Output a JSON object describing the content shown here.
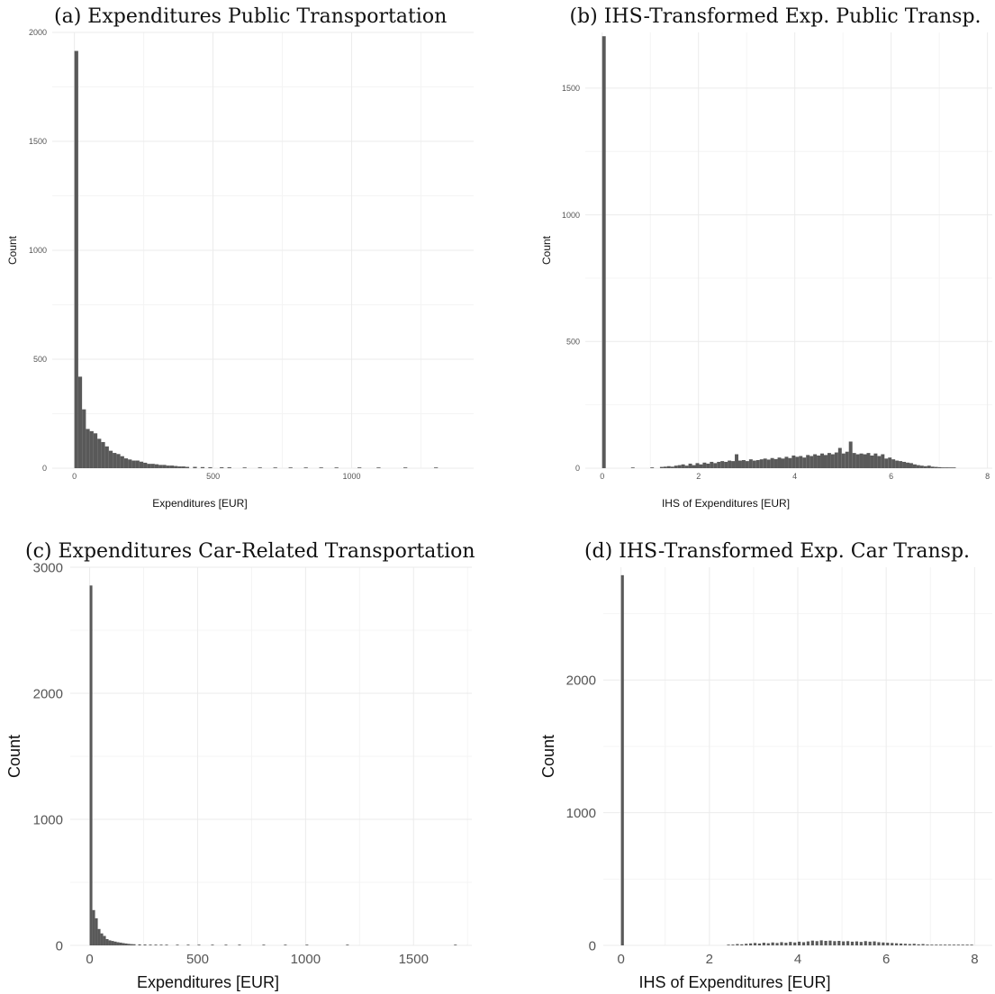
{
  "chart_data": [
    {
      "type": "bar",
      "title": "(a) Expenditures Public Transportation",
      "xlabel": "Expenditures [EUR]",
      "ylabel": "Count",
      "xlim": [
        -80,
        1440
      ],
      "ylim": [
        0,
        2000
      ],
      "xticks": [
        0,
        500,
        1000
      ],
      "yticks": [
        0,
        500,
        1000,
        1500,
        2000
      ],
      "grid": true,
      "binwidth": 13.8,
      "bins_start": [
        0,
        13.8,
        27.6,
        41.4,
        55.2,
        69,
        82.8,
        96.6,
        110.4,
        124.2,
        138,
        151.8,
        165.6,
        179.4,
        193.2,
        207,
        220.8,
        234.6,
        248.4,
        262.2,
        276,
        289.8,
        303.6,
        317.4,
        331.2,
        345,
        358.8,
        372.6,
        386.4,
        400.2,
        427.8,
        455.4,
        483,
        524.4,
        552,
        607.2,
        662.4,
        717.6,
        772.8,
        828,
        883.2,
        938.4,
        1021.2,
        1090.2,
        1186.8,
        1297.2
      ],
      "values": [
        1915,
        420,
        270,
        180,
        170,
        160,
        135,
        120,
        100,
        80,
        70,
        65,
        55,
        45,
        40,
        35,
        35,
        30,
        25,
        20,
        20,
        18,
        15,
        15,
        12,
        12,
        10,
        8,
        8,
        6,
        6,
        5,
        4,
        4,
        4,
        3,
        3,
        3,
        2,
        2,
        2,
        2,
        2,
        1,
        1,
        1
      ]
    },
    {
      "type": "bar",
      "title": "(b) IHS-Transformed Exp. Public Transp.",
      "xlabel": "IHS of Expenditures [EUR]",
      "ylabel": "Count",
      "xlim": [
        -0.35,
        8.1
      ],
      "ylim": [
        0,
        1720
      ],
      "xticks": [
        0,
        2,
        4,
        6,
        8
      ],
      "yticks": [
        0,
        500,
        1000,
        1500
      ],
      "grid": true,
      "binwidth": 0.074,
      "bins_start": [
        0,
        0.6,
        1.0,
        1.2,
        1.274,
        1.348,
        1.422,
        1.496,
        1.57,
        1.644,
        1.718,
        1.792,
        1.866,
        1.94,
        2.014,
        2.088,
        2.162,
        2.236,
        2.31,
        2.384,
        2.458,
        2.532,
        2.606,
        2.68,
        2.754,
        2.828,
        2.902,
        2.976,
        3.05,
        3.124,
        3.198,
        3.272,
        3.346,
        3.42,
        3.494,
        3.568,
        3.642,
        3.716,
        3.79,
        3.864,
        3.938,
        4.012,
        4.086,
        4.16,
        4.234,
        4.308,
        4.382,
        4.456,
        4.53,
        4.604,
        4.678,
        4.752,
        4.826,
        4.9,
        4.974,
        5.048,
        5.122,
        5.196,
        5.27,
        5.344,
        5.418,
        5.492,
        5.566,
        5.64,
        5.714,
        5.788,
        5.862,
        5.936,
        6.01,
        6.084,
        6.158,
        6.232,
        6.306,
        6.38,
        6.454,
        6.528,
        6.602,
        6.676,
        6.75,
        6.824,
        6.898,
        6.972,
        7.046,
        7.12,
        7.194,
        7.268
      ],
      "values": [
        1705,
        2,
        3,
        5,
        6,
        8,
        6,
        10,
        12,
        15,
        10,
        18,
        12,
        20,
        15,
        22,
        18,
        25,
        20,
        25,
        28,
        25,
        30,
        28,
        55,
        30,
        32,
        28,
        35,
        30,
        32,
        35,
        38,
        34,
        40,
        36,
        42,
        38,
        45,
        40,
        50,
        45,
        48,
        42,
        52,
        48,
        55,
        50,
        58,
        52,
        60,
        55,
        62,
        80,
        58,
        65,
        105,
        60,
        55,
        58,
        55,
        60,
        50,
        58,
        48,
        55,
        38,
        42,
        35,
        30,
        28,
        25,
        22,
        20,
        15,
        12,
        10,
        8,
        10,
        6,
        5,
        4,
        3,
        3,
        2,
        1
      ]
    },
    {
      "type": "bar",
      "title": "(c) Expenditures Car-Related Transportation",
      "xlabel": "Expenditures [EUR]",
      "ylabel": "Count",
      "xlim": [
        -90,
        1770
      ],
      "ylim": [
        0,
        3000
      ],
      "xticks": [
        0,
        500,
        1000,
        1500
      ],
      "yticks": [
        0,
        1000,
        2000,
        3000
      ],
      "grid": true,
      "binwidth": 12.5,
      "bins_start": [
        0,
        12.5,
        25,
        37.5,
        50,
        62.5,
        75,
        87.5,
        100,
        112.5,
        125,
        137.5,
        150,
        162.5,
        175,
        187.5,
        200,
        225,
        250,
        275,
        300,
        325,
        350,
        400,
        450,
        500,
        562.5,
        625,
        687.5,
        800,
        900,
        1000,
        1187.5,
        1687.5
      ],
      "values": [
        2855,
        280,
        215,
        130,
        95,
        75,
        50,
        40,
        35,
        30,
        25,
        22,
        18,
        15,
        12,
        10,
        9,
        8,
        7,
        6,
        6,
        5,
        4,
        4,
        3,
        3,
        3,
        2,
        2,
        2,
        1,
        1,
        1,
        1
      ]
    },
    {
      "type": "bar",
      "title": "(d) IHS-Transformed Exp. Car Transp.",
      "xlabel": "IHS of Expenditures [EUR]",
      "ylabel": "Count",
      "xlim": [
        -0.4,
        8.4
      ],
      "ylim": [
        0,
        2850
      ],
      "xticks": [
        0,
        2,
        4,
        6,
        8
      ],
      "yticks": [
        0,
        1000,
        2000
      ],
      "grid": true,
      "binwidth": 0.065,
      "bins_start": [
        0,
        2.4,
        2.5,
        2.6,
        2.7,
        2.8,
        2.9,
        3.0,
        3.1,
        3.2,
        3.3,
        3.4,
        3.5,
        3.6,
        3.7,
        3.8,
        3.9,
        4.0,
        4.1,
        4.2,
        4.3,
        4.4,
        4.5,
        4.6,
        4.7,
        4.8,
        4.9,
        5.0,
        5.1,
        5.2,
        5.3,
        5.4,
        5.5,
        5.6,
        5.7,
        5.8,
        5.9,
        6.0,
        6.1,
        6.2,
        6.3,
        6.4,
        6.5,
        6.6,
        6.7,
        6.8,
        6.9,
        7.0,
        7.1,
        7.2,
        7.3,
        7.4,
        7.5,
        7.6,
        7.7,
        7.8,
        7.9
      ],
      "values": [
        2790,
        3,
        6,
        10,
        8,
        12,
        15,
        18,
        14,
        20,
        16,
        22,
        18,
        24,
        20,
        26,
        22,
        28,
        24,
        30,
        36,
        32,
        38,
        34,
        36,
        32,
        34,
        30,
        32,
        28,
        30,
        26,
        32,
        28,
        30,
        24,
        22,
        20,
        18,
        16,
        14,
        12,
        10,
        12,
        8,
        10,
        6,
        5,
        4,
        3,
        3,
        2,
        2,
        1,
        1,
        1,
        1
      ]
    }
  ]
}
